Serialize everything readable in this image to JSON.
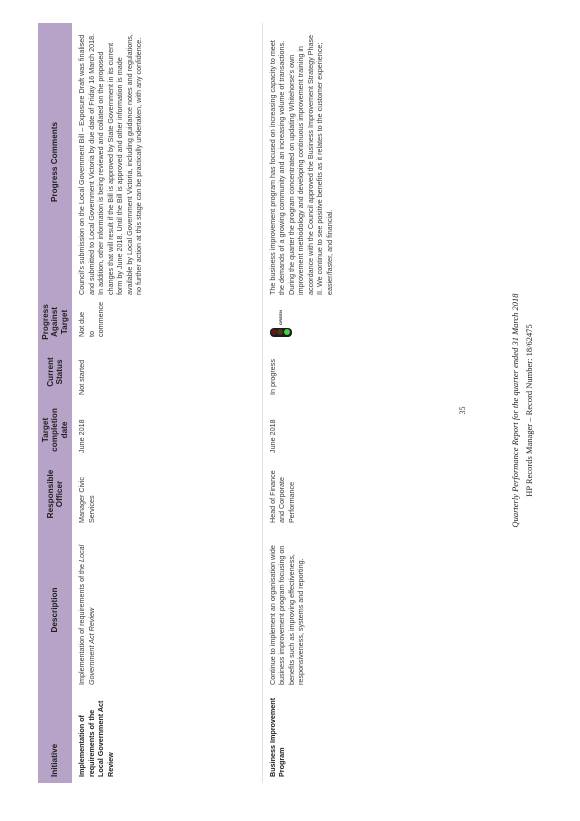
{
  "table": {
    "headers": {
      "initiative": "Initiative",
      "description": "Description",
      "responsible_officer": "Responsible Officer",
      "target_completion_date": "Target completion date",
      "current_status": "Current Status",
      "progress_against_target": "Progress Against Target",
      "progress_comments": "Progress Comments"
    },
    "rows": [
      {
        "initiative": "Implementation of requirements of the Local Government Act Review",
        "description_prefix": "Implementation of requirements of the",
        "description_italic": "Local Government Act Review",
        "responsible_officer": "Manager Civic Services",
        "target_completion_date": "June 2018",
        "current_status": "Not started",
        "progress_against_target": "Not due to commence",
        "comments": [
          "Council's submission on the Local Government Bill – Exposure Draft was finalised and submitted to Local Government Victoria by due date of Friday 16 March 2018.",
          "In addition, other information is being reviewed and collated on the proposed changes that will result if the Bill is approved by State Government in its current form by June 2018. Until the Bill is approved and other information is made available by Local Government Victoria, including guidance notes and regulations, no further action at this stage can be practically undertaken, with any confidence."
        ]
      },
      {
        "initiative": "Business Improvement Program",
        "description": "Continue to implement an organisation wide business improvement program focusing on benefits such as improving effectiveness, responsiveness, systems and reporting.",
        "responsible_officer": "Head of Finance and Corporate Performance",
        "target_completion_date": "June 2018",
        "current_status": "In progress",
        "traffic_light_label": "GREEN",
        "comments": [
          "The business improvement program has focused on increasing capacity to meet the demands of a growing community and an increasing volume of transactions. During the quarter the program concentrated on updating Whitehorse's own improvement methodology and developing continuous improvement training in accordance with the Council approved the Business Improvement Strategy Phase II. We continue to see positive benefits as it relates to the customer experience; easier/faster, and financial."
        ]
      }
    ]
  },
  "colors": {
    "header_bg": "#b7a3c8",
    "light_red": "#5a1a1a",
    "light_amber": "#4a3a10",
    "light_green": "#3fd13f"
  },
  "footer": {
    "page_number": "35",
    "report_title": "Quarterly Performance Report for the quarter ended 31 March 2018",
    "record_number": "HP Records Manager – Record Number: 18/62475"
  }
}
